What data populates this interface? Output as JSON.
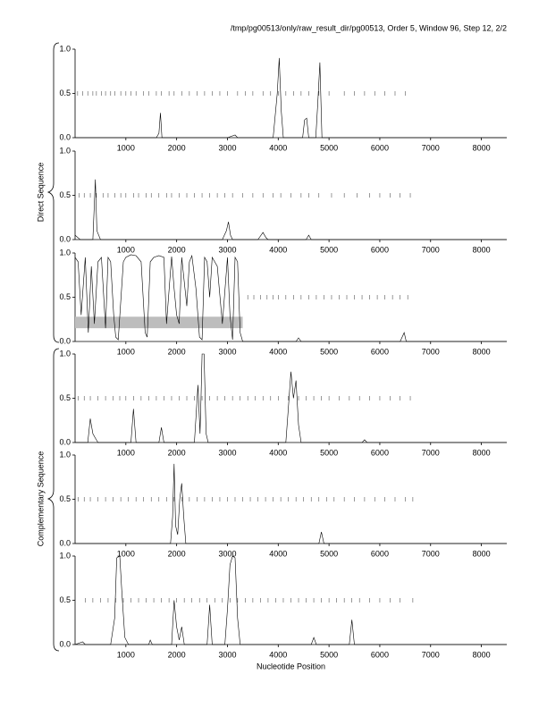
{
  "chart_data": [
    {
      "type": "line",
      "title": "/tmp/pg00513/only/raw_result_dir/pg00513, Order 5, Window 96, Step 12, 2/2",
      "x": [
        0,
        1600,
        1650,
        1680,
        1710,
        1800,
        3000,
        3150,
        3200,
        3900,
        3980,
        4020,
        4060,
        4100,
        4480,
        4520,
        4560,
        4600,
        4740,
        4780,
        4820,
        4860,
        5000,
        8500
      ],
      "series": [
        {
          "color": "#000000",
          "values": [
            0,
            0,
            0.05,
            0.28,
            0,
            0,
            0,
            0.03,
            0,
            0,
            0.5,
            0.9,
            0.3,
            0,
            0,
            0.2,
            0.22,
            0,
            0,
            0.4,
            0.85,
            0,
            0,
            0
          ]
        }
      ],
      "rug": [
        50,
        150,
        250,
        350,
        420,
        520,
        600,
        700,
        780,
        900,
        1000,
        1100,
        1200,
        1350,
        1450,
        1600,
        1700,
        1850,
        1950,
        2100,
        2250,
        2400,
        2550,
        2700,
        2850,
        3000,
        3200,
        3350,
        3500,
        3700,
        3850,
        4000,
        4150,
        4300,
        4450,
        4600,
        4800,
        5000,
        5300,
        5500,
        5700,
        5900,
        6100,
        6300,
        6500
      ],
      "xlim": [
        0,
        8500
      ],
      "ylim": [
        0,
        1
      ],
      "xticks": [
        1000,
        2000,
        3000,
        4000,
        5000,
        6000,
        7000,
        8000
      ],
      "yticks": [
        {
          "value": 0,
          "label": "0.0"
        },
        {
          "value": 0.5,
          "label": "0.5"
        },
        {
          "value": 1,
          "label": "1.0"
        }
      ]
    },
    {
      "type": "line",
      "ylabel": "Direct Sequence",
      "x": [
        0,
        100,
        150,
        350,
        400,
        430,
        500,
        2900,
        2980,
        3020,
        3060,
        3100,
        3600,
        3700,
        3760,
        3800,
        4550,
        4600,
        4650,
        8500
      ],
      "series": [
        {
          "color": "#000000",
          "values": [
            0.05,
            0,
            0,
            0,
            0.68,
            0.1,
            0,
            0,
            0.1,
            0.2,
            0.05,
            0,
            0,
            0.08,
            0.02,
            0,
            0,
            0.05,
            0,
            0
          ]
        }
      ],
      "rug": [
        80,
        180,
        300,
        420,
        550,
        650,
        780,
        900,
        1000,
        1150,
        1250,
        1400,
        1500,
        1650,
        1800,
        1900,
        2050,
        2200,
        2350,
        2500,
        2650,
        2800,
        2950,
        3100,
        3300,
        3500,
        3700,
        3900,
        4050,
        4250,
        4450,
        4600,
        4800,
        5050,
        5300,
        5550,
        5800,
        6000,
        6200,
        6400,
        6600
      ],
      "xlim": [
        0,
        8500
      ],
      "ylim": [
        0,
        1
      ],
      "xticks": [
        1000,
        2000,
        3000,
        4000,
        5000,
        6000,
        7000,
        8000
      ],
      "yticks": [
        {
          "value": 0,
          "label": "0.0"
        },
        {
          "value": 0.5,
          "label": "0.5"
        },
        {
          "value": 1,
          "label": "1.0"
        }
      ]
    },
    {
      "type": "line",
      "x": [
        0,
        60,
        120,
        200,
        260,
        320,
        380,
        450,
        520,
        600,
        650,
        700,
        760,
        800,
        850,
        950,
        1000,
        1100,
        1200,
        1300,
        1380,
        1420,
        1480,
        1550,
        1650,
        1750,
        1800,
        1900,
        1950,
        2000,
        2050,
        2100,
        2200,
        2250,
        2300,
        2380,
        2450,
        2500,
        2550,
        2600,
        2650,
        2700,
        2800,
        2900,
        3000,
        3050,
        3100,
        3150,
        3200,
        3250,
        3300,
        4350,
        4400,
        4450,
        6400,
        6480,
        6520,
        8500
      ],
      "series": [
        {
          "color": "#000000",
          "values": [
            0.95,
            0.9,
            0.3,
            0.95,
            0.1,
            0.85,
            0.2,
            0.9,
            0.95,
            0.15,
            0.95,
            0.9,
            0.3,
            0.05,
            0.02,
            0.9,
            0.95,
            0.98,
            0.97,
            0.9,
            0.1,
            0.05,
            0.9,
            0.95,
            0.97,
            0.95,
            0.2,
            0.96,
            0.6,
            0.3,
            0.2,
            0.95,
            0.4,
            0.9,
            0.97,
            0.6,
            0.05,
            0.02,
            0.95,
            0.9,
            0.5,
            0.95,
            0.85,
            0.2,
            0.95,
            0.3,
            0.02,
            0.95,
            0.9,
            0.1,
            0,
            0,
            0.04,
            0,
            0,
            0.1,
            0,
            0
          ]
        }
      ],
      "band": {
        "x": [
          0,
          3300
        ],
        "y": [
          0.15,
          0.28
        ]
      },
      "rug": [
        3400,
        3520,
        3650,
        3780,
        3900,
        4000,
        4150,
        4300,
        4450,
        4600,
        4750,
        4900,
        5050,
        5200,
        5350,
        5500,
        5650,
        5800,
        5950,
        6100,
        6250,
        6400,
        6550
      ],
      "xlim": [
        0,
        8500
      ],
      "ylim": [
        0,
        1
      ],
      "xticks": [
        1000,
        2000,
        3000,
        4000,
        5000,
        6000,
        7000,
        8000
      ],
      "yticks": [
        {
          "value": 0,
          "label": "0.0"
        },
        {
          "value": 0.5,
          "label": "0.5"
        },
        {
          "value": 1,
          "label": "1.0"
        }
      ]
    },
    {
      "type": "line",
      "x": [
        0,
        250,
        300,
        350,
        400,
        450,
        1100,
        1150,
        1200,
        1650,
        1700,
        1750,
        2350,
        2420,
        2460,
        2480,
        2500,
        2540,
        2580,
        2620,
        4150,
        4200,
        4250,
        4300,
        4350,
        4400,
        4450,
        5650,
        5700,
        5750,
        8500
      ],
      "series": [
        {
          "color": "#000000",
          "values": [
            0,
            0,
            0.27,
            0.1,
            0.05,
            0,
            0,
            0.38,
            0,
            0,
            0.17,
            0,
            0,
            0.65,
            0.1,
            0.5,
            1.0,
            1.0,
            0.1,
            0,
            0,
            0.4,
            0.8,
            0.5,
            0.7,
            0.2,
            0,
            0,
            0.03,
            0,
            0
          ]
        }
      ],
      "rug": [
        60,
        180,
        300,
        450,
        600,
        750,
        880,
        1000,
        1150,
        1300,
        1450,
        1600,
        1750,
        1900,
        2050,
        2200,
        2350,
        2500,
        2650,
        2800,
        2950,
        3100,
        3250,
        3400,
        3550,
        3700,
        3850,
        4000,
        4200,
        4400,
        4550,
        4700,
        4850,
        5000,
        5200,
        5400,
        5600,
        5800,
        6000,
        6200,
        6400,
        6600
      ],
      "xlim": [
        0,
        8500
      ],
      "ylim": [
        0,
        1
      ],
      "xticks": [
        1000,
        2000,
        3000,
        4000,
        5000,
        6000,
        7000,
        8000
      ],
      "yticks": [
        {
          "value": 0,
          "label": "0.0"
        },
        {
          "value": 0.5,
          "label": "0.5"
        },
        {
          "value": 1,
          "label": "1.0"
        }
      ]
    },
    {
      "type": "line",
      "ylabel": "Complementary Sequence",
      "x": [
        0,
        1880,
        1920,
        1950,
        1980,
        2020,
        2060,
        2100,
        2140,
        2180,
        4800,
        4850,
        4900,
        8500
      ],
      "series": [
        {
          "color": "#000000",
          "values": [
            0,
            0,
            0.3,
            0.9,
            0.2,
            0.1,
            0.5,
            0.68,
            0.3,
            0,
            0,
            0.13,
            0,
            0
          ]
        }
      ],
      "rug": [
        60,
        180,
        300,
        450,
        600,
        750,
        900,
        1050,
        1200,
        1350,
        1500,
        1650,
        1800,
        1950,
        2100,
        2250,
        2400,
        2550,
        2700,
        2850,
        3000,
        3150,
        3300,
        3450,
        3600,
        3750,
        3900,
        4050,
        4200,
        4350,
        4500,
        4650,
        4800,
        4950,
        5100,
        5300,
        5500,
        5700,
        5900,
        6100,
        6300,
        6500,
        6650
      ],
      "xlim": [
        0,
        8500
      ],
      "ylim": [
        0,
        1
      ],
      "xticks": [
        1000,
        2000,
        3000,
        4000,
        5000,
        6000,
        7000,
        8000
      ],
      "yticks": [
        {
          "value": 0,
          "label": "0.0"
        },
        {
          "value": 0.5,
          "label": "0.5"
        },
        {
          "value": 1,
          "label": "1.0"
        }
      ]
    },
    {
      "type": "line",
      "xlabel": "Nucleotide Position",
      "x": [
        0,
        150,
        200,
        700,
        780,
        820,
        880,
        920,
        980,
        1050,
        1450,
        1480,
        1520,
        1900,
        1950,
        2000,
        2050,
        2100,
        2150,
        2600,
        2650,
        2700,
        2950,
        3000,
        3050,
        3100,
        3150,
        3200,
        3250,
        4650,
        4700,
        4750,
        5400,
        5450,
        5500,
        8500
      ],
      "series": [
        {
          "color": "#000000",
          "values": [
            0,
            0.03,
            0,
            0,
            0.3,
            0.98,
            1.0,
            0.6,
            0.08,
            0,
            0,
            0.05,
            0,
            0,
            0.5,
            0.2,
            0.05,
            0.2,
            0,
            0,
            0.45,
            0,
            0,
            0.4,
            0.9,
            1.0,
            0.98,
            0.3,
            0,
            0,
            0.08,
            0,
            0,
            0.28,
            0,
            0
          ]
        }
      ],
      "rug": [
        200,
        350,
        500,
        650,
        800,
        950,
        1100,
        1250,
        1400,
        1550,
        1700,
        1850,
        2000,
        2150,
        2300,
        2450,
        2600,
        2750,
        2900,
        3050,
        3200,
        3350,
        3500,
        3650,
        3800,
        3950,
        4100,
        4250,
        4400,
        4550,
        4700,
        4850,
        5000,
        5150,
        5300,
        5450,
        5600,
        5800,
        6000,
        6200,
        6400,
        6650
      ],
      "xlim": [
        0,
        8500
      ],
      "ylim": [
        0,
        1
      ],
      "xticks": [
        1000,
        2000,
        3000,
        4000,
        5000,
        6000,
        7000,
        8000
      ],
      "yticks": [
        {
          "value": 0,
          "label": "0.0"
        },
        {
          "value": 0.5,
          "label": "0.5"
        },
        {
          "value": 1,
          "label": "1.0"
        }
      ]
    }
  ]
}
